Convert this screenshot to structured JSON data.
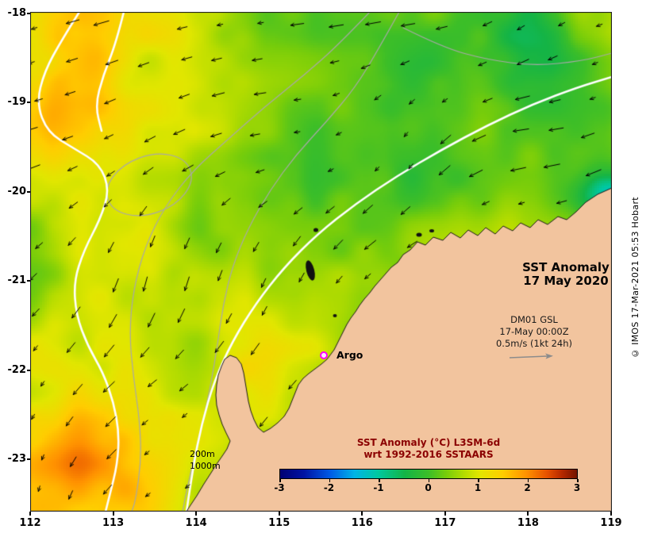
{
  "map": {
    "title_line1": "SST Anomaly",
    "title_line2": "17 May 2020",
    "argo_label": "Argo",
    "gsl_line1": "DM01 GSL",
    "gsl_line2": "17-May 00:00Z",
    "gsl_line3": "0.5m/s (1kt 24h)",
    "depth_label_200": "200m",
    "depth_label_1000": "1000m"
  },
  "axes": {
    "x_ticks": [
      "112",
      "113",
      "114",
      "115",
      "116",
      "117",
      "118",
      "119"
    ],
    "y_ticks": [
      "-18",
      "-19",
      "-20",
      "-21",
      "-22",
      "-23"
    ]
  },
  "colorbar": {
    "title_line1": "SST Anomaly (°C) L3SM-6d",
    "title_line2": "wrt 1992-2016 SSTAARS",
    "ticks": [
      "-3",
      "-2",
      "-1",
      "0",
      "1",
      "2",
      "3"
    ],
    "stops": [
      {
        "t": 0.0,
        "color": "#000073"
      },
      {
        "t": 0.08,
        "color": "#0013a3"
      },
      {
        "t": 0.17,
        "color": "#005ce6"
      },
      {
        "t": 0.25,
        "color": "#00b4e6"
      },
      {
        "t": 0.33,
        "color": "#00c8a0"
      },
      {
        "t": 0.42,
        "color": "#14b446"
      },
      {
        "t": 0.5,
        "color": "#3cbe28"
      },
      {
        "t": 0.56,
        "color": "#78cd0a"
      },
      {
        "t": 0.62,
        "color": "#b4dc00"
      },
      {
        "t": 0.67,
        "color": "#e1e600"
      },
      {
        "t": 0.75,
        "color": "#ffcd00"
      },
      {
        "t": 0.83,
        "color": "#ff9100"
      },
      {
        "t": 0.9,
        "color": "#e65000"
      },
      {
        "t": 0.95,
        "color": "#b42800"
      },
      {
        "t": 1.0,
        "color": "#731400"
      }
    ]
  },
  "credit": "© IMOS 17-Mar-2021 05:53 Hobart",
  "colors": {
    "land": "#f2c49e",
    "coast_outline": "#1a1a1a",
    "argo": "#ff00ff",
    "vectors": "#000000",
    "contour_main": "#ffffff",
    "contour_bathy": "#a8a8a8",
    "colorbar_title": "#8b0000",
    "gsl_arrow": "#8c8c8c"
  },
  "chart_data": {
    "type": "heatmap",
    "title": "SST Anomaly 17 May 2020",
    "x_ticks": [
      112,
      113,
      114,
      115,
      116,
      117,
      118,
      119
    ],
    "y_ticks": [
      -18,
      -19,
      -20,
      -21,
      -22,
      -23
    ],
    "colorbar_ticks": [
      -3,
      -2,
      -1,
      0,
      1,
      2,
      3
    ],
    "colorbar_title": "SST Anomaly (°C) L3SM-6d wrt 1992-2016 SSTAARS",
    "value_range": [
      -3,
      3
    ],
    "legend_position": "bottom",
    "annotations": [
      "Argo",
      "DM01 GSL",
      "17-May 00:00Z",
      "0.5m/s (1kt 24h)",
      "200m",
      "1000m",
      "SST Anomaly",
      "17 May 2020"
    ]
  }
}
